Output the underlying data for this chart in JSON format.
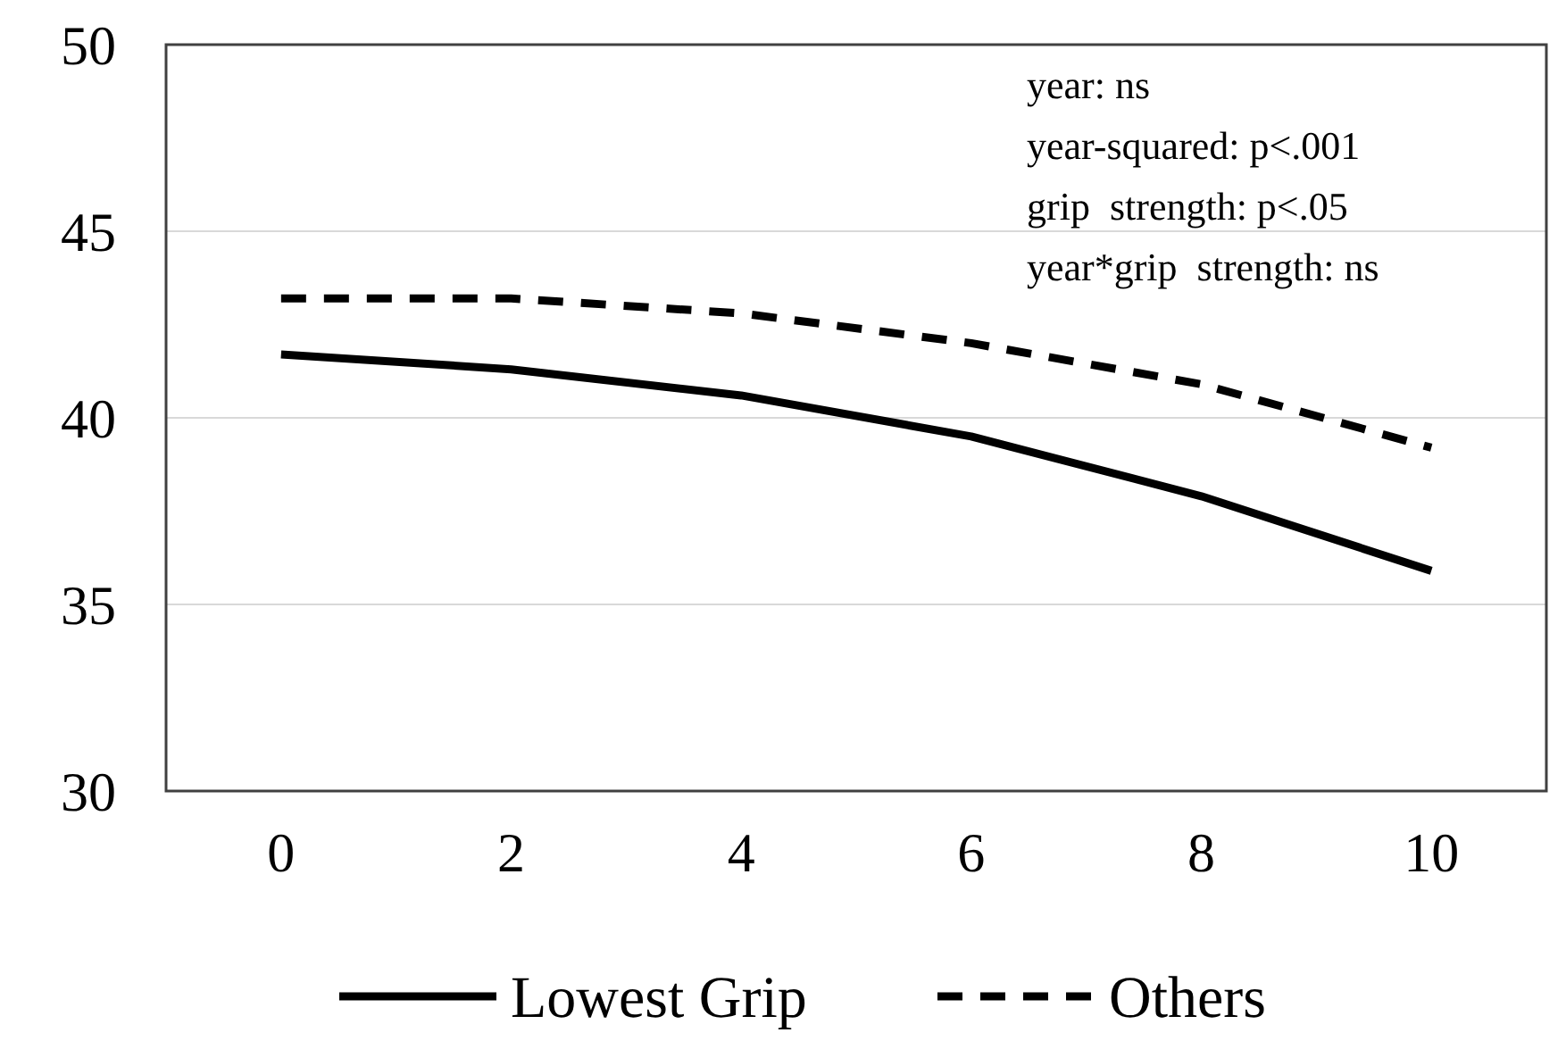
{
  "chart_data": {
    "type": "line",
    "categories": [
      "0",
      "2",
      "4",
      "6",
      "8",
      "10"
    ],
    "series": [
      {
        "name": "Lowest Grip",
        "color": "#000000",
        "values": [
          41.7,
          41.3,
          40.6,
          39.5,
          37.9,
          35.9
        ],
        "line_style": "solid"
      },
      {
        "name": "Others",
        "color": "#000000",
        "values": [
          43.2,
          43.2,
          42.8,
          42.0,
          40.9,
          39.2
        ],
        "line_style": "dashed"
      }
    ],
    "ylim": [
      30,
      50
    ],
    "yticks": [
      30,
      35,
      40,
      45,
      50
    ],
    "grid": "y",
    "legend": "bottom",
    "annotations": [
      "year: ns",
      "year-squared: p<.001",
      "grip  strength: p<.05",
      "year*grip  strength: ns"
    ]
  }
}
